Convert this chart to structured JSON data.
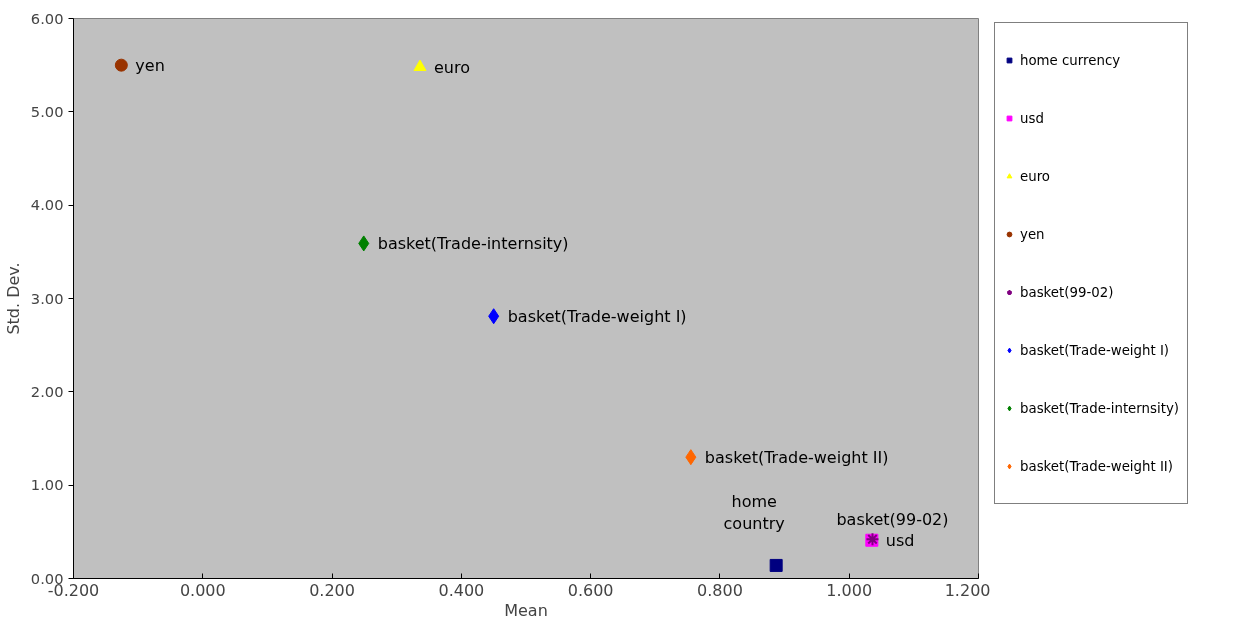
{
  "chart_data": {
    "type": "scatter",
    "xlabel": "Mean",
    "ylabel": "Std. Dev.",
    "xlim": [
      -0.2,
      1.2
    ],
    "ylim": [
      0,
      6
    ],
    "xticks": [
      {
        "value": -0.2,
        "label": "-0.200"
      },
      {
        "value": 0,
        "label": "0.000"
      },
      {
        "value": 0.2,
        "label": "0.200"
      },
      {
        "value": 0.4,
        "label": "0.400"
      },
      {
        "value": 0.6,
        "label": "0.600"
      },
      {
        "value": 0.8,
        "label": "0.800"
      },
      {
        "value": 1.0,
        "label": "1.000"
      },
      {
        "value": 1.2,
        "label": "1.200"
      }
    ],
    "yticks": [
      {
        "value": 0,
        "label": "0.00"
      },
      {
        "value": 1,
        "label": "1.00"
      },
      {
        "value": 2,
        "label": "2.00"
      },
      {
        "value": 3,
        "label": "3.00"
      },
      {
        "value": 4,
        "label": "4.00"
      },
      {
        "value": 5,
        "label": "5.00"
      },
      {
        "value": 6,
        "label": "6.00"
      }
    ],
    "grid": false,
    "legend": "right",
    "series": [
      {
        "name": "home currency",
        "color": "#000080",
        "marker": "square",
        "x": [
          0.887
        ],
        "values": [
          0.14
        ]
      },
      {
        "name": "usd",
        "color": "#ff00ff",
        "marker": "square",
        "x": [
          1.035
        ],
        "values": [
          0.41
        ]
      },
      {
        "name": "euro",
        "color": "#ffff00",
        "marker": "triangle",
        "x": [
          0.336
        ],
        "values": [
          5.48
        ]
      },
      {
        "name": "yen",
        "color": "#993300",
        "marker": "circle",
        "x": [
          -0.126
        ],
        "values": [
          5.5
        ]
      },
      {
        "name": "basket(99-02)",
        "color": "#800080",
        "marker": "cross",
        "x": [
          1.036
        ],
        "values": [
          0.42
        ]
      },
      {
        "name": "basket(Trade-weight I)",
        "color": "#0000ff",
        "marker": "diamond",
        "x": [
          0.45
        ],
        "values": [
          2.81
        ]
      },
      {
        "name": "basket(Trade-internsity)",
        "color": "#008000",
        "marker": "diamond",
        "x": [
          0.249
        ],
        "values": [
          3.59
        ]
      },
      {
        "name": "basket(Trade-weight II)",
        "color": "#ff6600",
        "marker": "diamond",
        "x": [
          0.755
        ],
        "values": [
          1.3
        ]
      }
    ],
    "annotations": [
      {
        "text": "yen",
        "x": -0.126,
        "y": 5.5
      },
      {
        "text": "euro",
        "x": 0.336,
        "y": 5.48
      },
      {
        "text": "basket(Trade-internsity)",
        "x": 0.249,
        "y": 3.59
      },
      {
        "text": "basket(Trade-weight I)",
        "x": 0.45,
        "y": 2.81
      },
      {
        "text": "basket(Trade-weight II)",
        "x": 0.755,
        "y": 1.3
      },
      {
        "text": "home\ncountry",
        "x": 0.887,
        "y": 0.14
      },
      {
        "text": "basket(99-02)",
        "x": 1.036,
        "y": 0.42
      },
      {
        "text": "usd",
        "x": 1.035,
        "y": 0.41
      }
    ]
  }
}
